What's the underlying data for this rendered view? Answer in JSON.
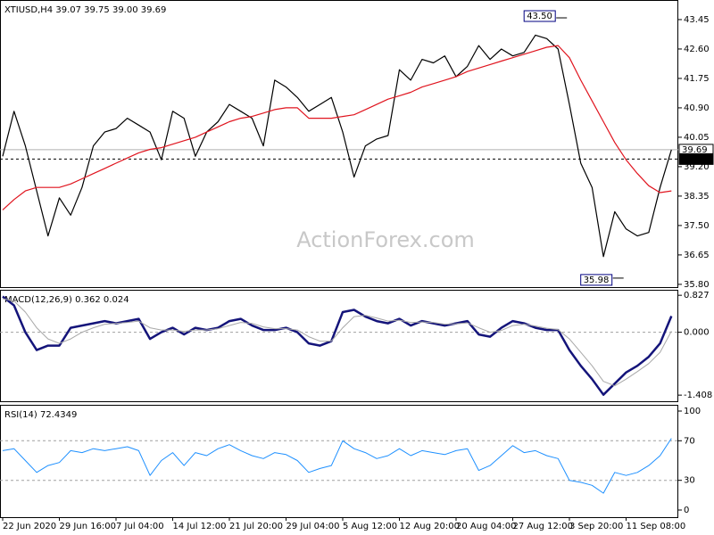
{
  "watermark": "ActionForex.com",
  "chart_data": [
    {
      "type": "line",
      "title": "XTIUSD,H4  39.07 39.75 39.00 39.69",
      "ylim": [
        35.72,
        43.99
      ],
      "yticks": [
        {
          "value": 35.8,
          "label": "35.80"
        },
        36.65,
        {
          "value": 37.5,
          "label": "37.50"
        },
        38.35,
        {
          "value": 39.2,
          "label": "39.20"
        },
        40.05,
        {
          "value": 40.9,
          "label": "40.90"
        },
        41.75,
        {
          "value": 42.6,
          "label": "42.60"
        },
        43.45
      ],
      "series": [
        {
          "name": "XTIUSD",
          "color": "#000000",
          "values": [
            39.5,
            40.8,
            39.8,
            38.5,
            37.2,
            38.3,
            37.8,
            38.6,
            39.8,
            40.2,
            40.3,
            40.6,
            40.4,
            40.2,
            39.4,
            40.8,
            40.6,
            39.5,
            40.2,
            40.5,
            41.0,
            40.8,
            40.6,
            39.8,
            41.7,
            41.5,
            41.2,
            40.8,
            41.0,
            41.2,
            40.2,
            38.9,
            39.8,
            40.0,
            40.1,
            42.0,
            41.7,
            42.3,
            42.2,
            42.4,
            41.8,
            42.1,
            42.7,
            42.3,
            42.6,
            42.4,
            42.5,
            43.0,
            42.9,
            42.6,
            41.0,
            39.3,
            38.6,
            36.6,
            37.9,
            37.4,
            37.2,
            37.3,
            38.6,
            39.69
          ]
        },
        {
          "name": "MA",
          "color": "#e0141e",
          "values": [
            37.95,
            38.25,
            38.5,
            38.6,
            38.6,
            38.6,
            38.7,
            38.85,
            39.0,
            39.15,
            39.3,
            39.45,
            39.6,
            39.7,
            39.75,
            39.85,
            39.95,
            40.05,
            40.2,
            40.35,
            40.5,
            40.6,
            40.65,
            40.75,
            40.85,
            40.9,
            40.9,
            40.6,
            40.6,
            40.6,
            40.65,
            40.7,
            40.85,
            41.0,
            41.15,
            41.25,
            41.35,
            41.5,
            41.6,
            41.7,
            41.8,
            41.95,
            42.05,
            42.15,
            42.25,
            42.35,
            42.45,
            42.55,
            42.65,
            42.7,
            42.35,
            41.7,
            41.1,
            40.5,
            39.9,
            39.4,
            39.0,
            38.65,
            38.45,
            38.5
          ]
        }
      ],
      "annotations": [
        {
          "value": 43.5,
          "label": "43.50",
          "index": 46
        },
        {
          "value": 35.98,
          "label": "35.98",
          "index": 51
        }
      ],
      "price_lines": [
        {
          "value": 39.69,
          "label": "39.69",
          "style": "solid"
        },
        {
          "value": 39.42,
          "label": "39.42",
          "style": "dashed"
        }
      ]
    },
    {
      "type": "line",
      "title": "MACD(12,26,9) 0.362 0.024",
      "ylim": [
        -1.545,
        0.93
      ],
      "yticks": [
        -1.408,
        {
          "value": 0,
          "label": "0.000"
        },
        0.827
      ],
      "levels": [
        0
      ],
      "series": [
        {
          "name": "MACD",
          "color": "#14147a",
          "width": 2.5,
          "values": [
            0.8,
            0.6,
            0.0,
            -0.4,
            -0.3,
            -0.3,
            0.1,
            0.15,
            0.2,
            0.25,
            0.2,
            0.25,
            0.3,
            -0.15,
            0.0,
            0.1,
            -0.05,
            0.1,
            0.05,
            0.1,
            0.25,
            0.3,
            0.15,
            0.05,
            0.05,
            0.1,
            0.0,
            -0.25,
            -0.3,
            -0.2,
            0.45,
            0.5,
            0.35,
            0.25,
            0.2,
            0.3,
            0.15,
            0.25,
            0.2,
            0.15,
            0.2,
            0.25,
            -0.05,
            -0.1,
            0.1,
            0.25,
            0.2,
            0.1,
            0.05,
            0.05,
            -0.4,
            -0.75,
            -1.05,
            -1.4,
            -1.15,
            -0.9,
            -0.75,
            -0.55,
            -0.25,
            0.362
          ]
        },
        {
          "name": "Signal",
          "color": "#a8a8a8",
          "width": 1,
          "values": [
            0.75,
            0.7,
            0.45,
            0.1,
            -0.15,
            -0.25,
            -0.15,
            0.0,
            0.1,
            0.18,
            0.2,
            0.22,
            0.25,
            0.1,
            0.05,
            0.05,
            0.02,
            0.05,
            0.05,
            0.08,
            0.15,
            0.22,
            0.2,
            0.12,
            0.08,
            0.08,
            0.05,
            -0.1,
            -0.2,
            -0.2,
            0.1,
            0.35,
            0.38,
            0.32,
            0.25,
            0.27,
            0.22,
            0.23,
            0.22,
            0.18,
            0.19,
            0.21,
            0.1,
            0.0,
            0.04,
            0.15,
            0.18,
            0.14,
            0.09,
            0.06,
            -0.15,
            -0.45,
            -0.75,
            -1.1,
            -1.2,
            -1.05,
            -0.88,
            -0.7,
            -0.45,
            0.024
          ]
        }
      ]
    },
    {
      "type": "line",
      "title": "RSI(14) 72.4349",
      "ylim": [
        -7.2,
        105.4
      ],
      "yticks": [
        0,
        30,
        70,
        100
      ],
      "levels": [
        30,
        70
      ],
      "categories": [
        "22 Jun 2020",
        null,
        null,
        null,
        null,
        "29 Jun 16:00",
        null,
        null,
        null,
        null,
        "7 Jul 04:00",
        null,
        null,
        null,
        null,
        "14 Jul 12:00",
        null,
        null,
        null,
        null,
        "21 Jul 20:00",
        null,
        null,
        null,
        null,
        "29 Jul 04:00",
        null,
        null,
        null,
        null,
        "5 Aug 12:00",
        null,
        null,
        null,
        null,
        "12 Aug 20:00",
        null,
        null,
        null,
        null,
        "20 Aug 04:00",
        null,
        null,
        null,
        null,
        "27 Aug 12:00",
        null,
        null,
        null,
        null,
        "3 Sep 20:00",
        null,
        null,
        null,
        null,
        "11 Sep 08:00",
        null,
        null,
        null,
        null
      ],
      "series": [
        {
          "name": "RSI",
          "color": "#1e90ff",
          "width": 1,
          "values": [
            60,
            62,
            50,
            38,
            45,
            48,
            60,
            58,
            62,
            60,
            62,
            64,
            60,
            35,
            50,
            58,
            45,
            58,
            55,
            62,
            66,
            60,
            55,
            52,
            58,
            56,
            50,
            38,
            42,
            45,
            70,
            62,
            58,
            52,
            55,
            62,
            55,
            60,
            58,
            56,
            60,
            62,
            40,
            45,
            55,
            65,
            58,
            60,
            55,
            52,
            30,
            28,
            25,
            17,
            38,
            35,
            38,
            45,
            55,
            72.4349
          ]
        }
      ]
    }
  ]
}
